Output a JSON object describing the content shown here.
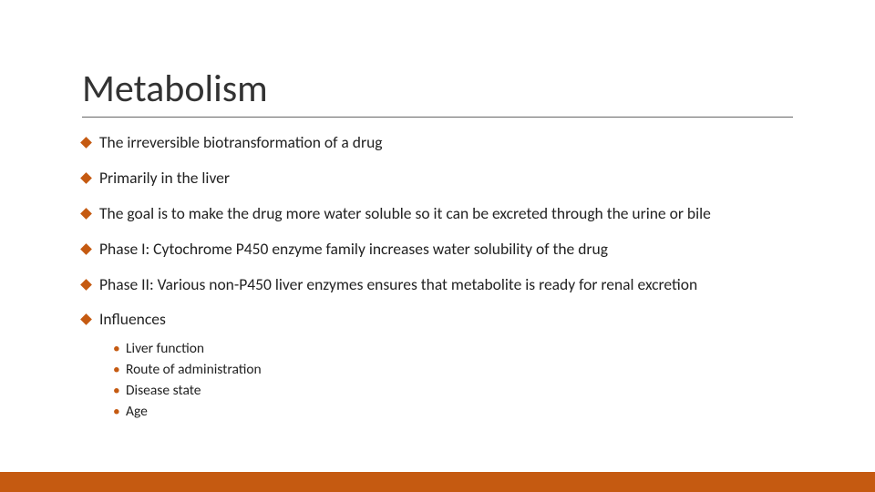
{
  "slide": {
    "title": "Metabolism",
    "title_fontsize": 42,
    "title_color": "#333333",
    "rule_color": "#666666",
    "background_color": "#ffffff",
    "bullet_diamond_color": "#c55a11",
    "bullet_fontsize": 17.5,
    "bullet_color": "#222222",
    "bullets": [
      "The irreversible biotransformation of a drug",
      "Primarily in the liver",
      "The goal is to make the drug more water soluble so it can be excreted through the urine or bile",
      "Phase I: Cytochrome P450 enzyme family increases water solubility of the drug",
      "Phase II: Various non-P450 liver enzymes ensures that metabolite is ready for renal excretion",
      "Influences"
    ],
    "sub_bullet_marker_color": "#c55a11",
    "sub_bullet_fontsize": 15.5,
    "sub_bullets": [
      "Liver function",
      "Route of administration",
      "Disease state",
      "Age"
    ],
    "footer_bar_color": "#c55a11",
    "footer_bar_height": 22
  }
}
